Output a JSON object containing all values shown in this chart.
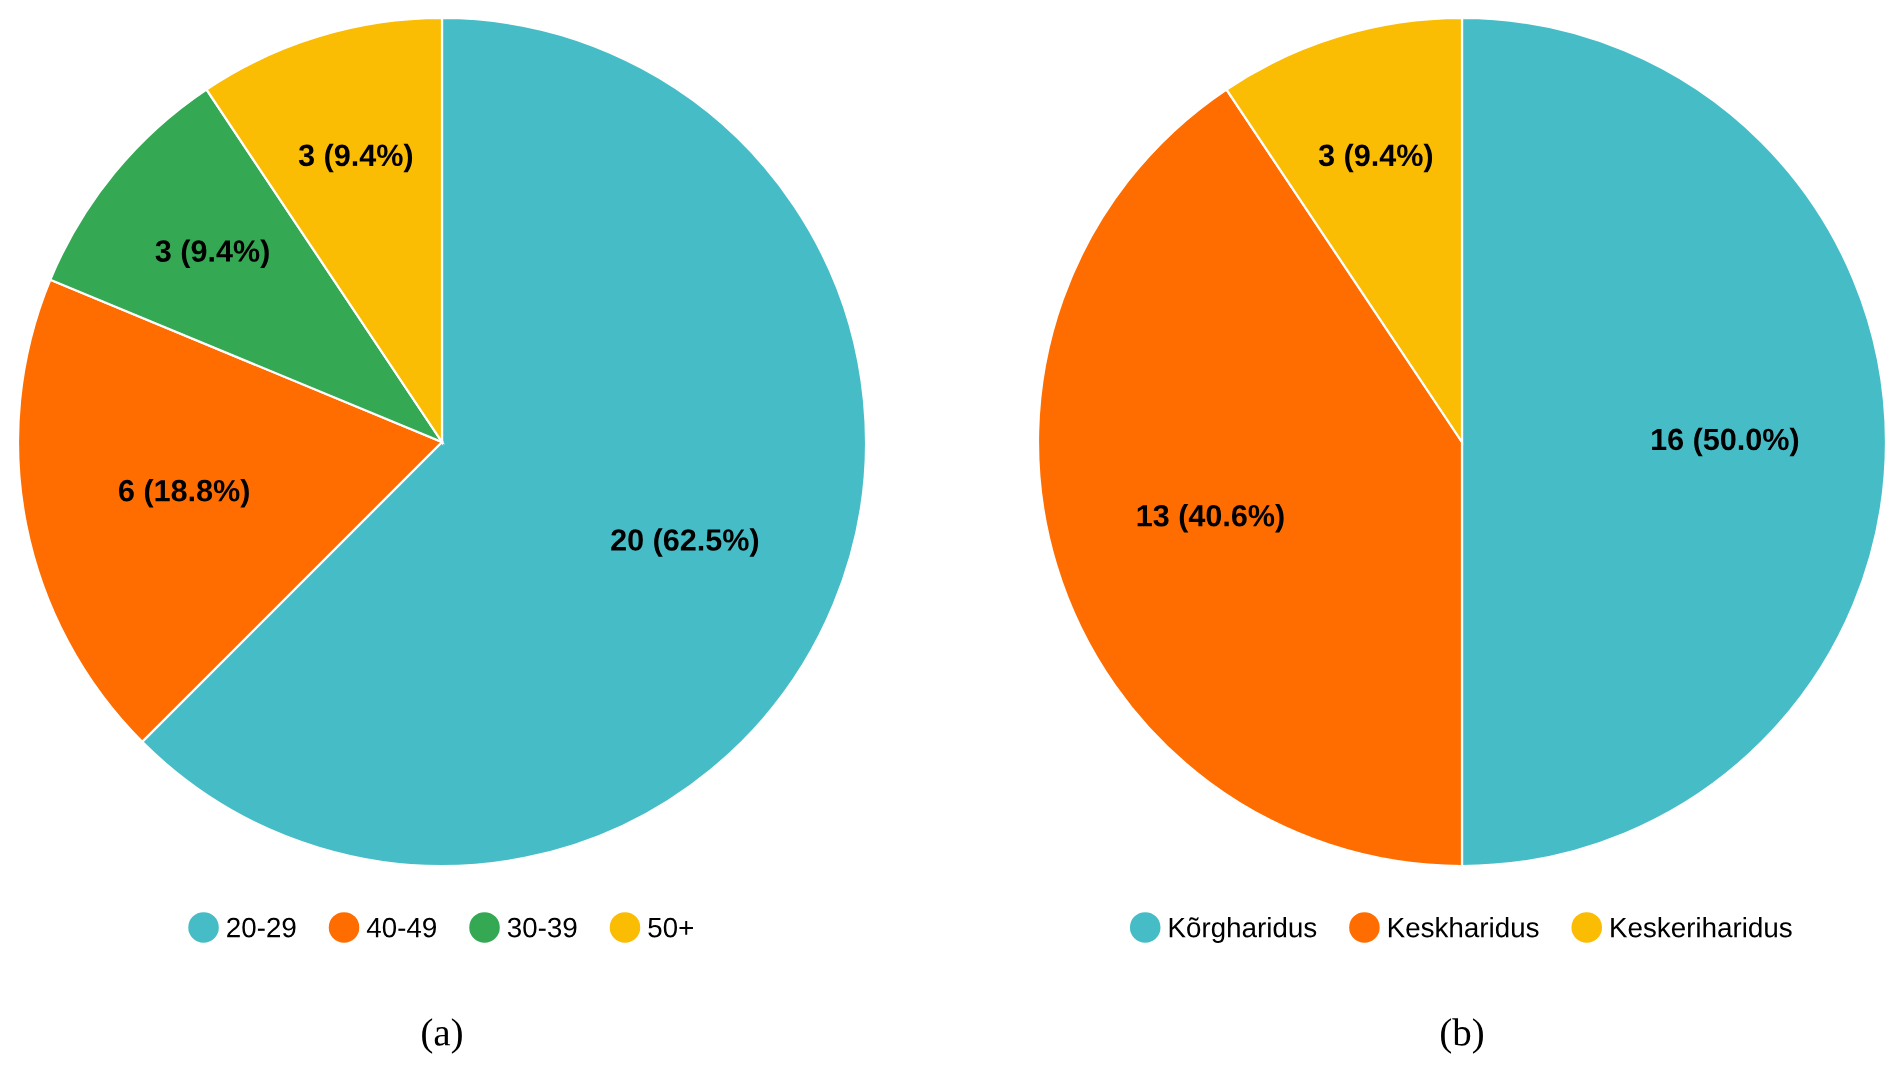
{
  "chart_data": [
    {
      "type": "pie",
      "categories": [
        "20-29",
        "40-49",
        "30-39",
        "50+"
      ],
      "values": [
        20,
        6,
        3,
        3
      ],
      "colors": [
        "#46bdc6",
        "#ff6d01",
        "#34a853",
        "#fbbc04"
      ],
      "value_labels": [
        "20 (62.5%)",
        "6 (18.8%)",
        "3 (9.4%)",
        "3 (9.4%)"
      ],
      "legend": "bottom",
      "annotations": [
        "(a)"
      ]
    },
    {
      "type": "pie",
      "categories": [
        "Kõrgharidus",
        "Keskharidus",
        "Keskeriharidus"
      ],
      "values": [
        16,
        13,
        3
      ],
      "colors": [
        "#46bdc6",
        "#ff6d01",
        "#fbbc04"
      ],
      "value_labels": [
        "16 (50.0%)",
        "13 (40.6%)",
        "3 (9.4%)"
      ],
      "legend": "bottom",
      "annotations": [
        "(b)"
      ]
    }
  ]
}
